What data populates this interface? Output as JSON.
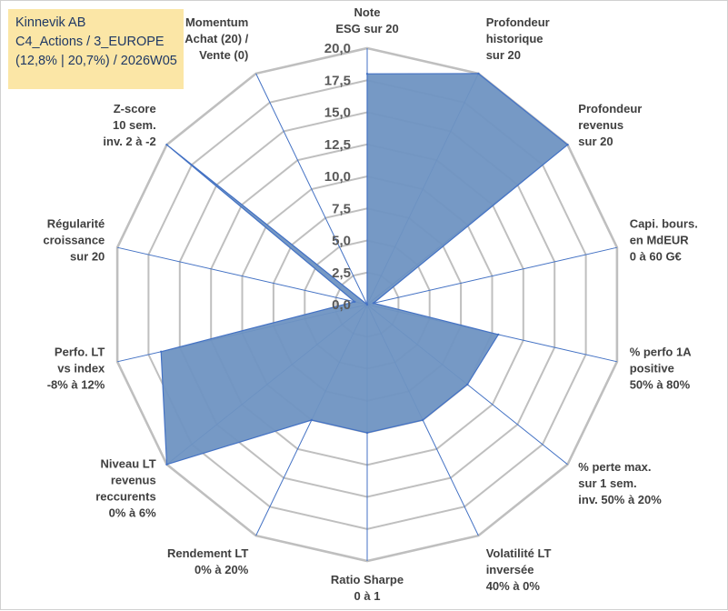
{
  "header": {
    "line1": "Kinnevik AB",
    "line2": "C4_Actions / 3_EUROPE",
    "line3": "(12,8% | 20,7%) / 2026W05"
  },
  "chart_data": {
    "type": "radar",
    "title": "",
    "rlim": [
      0,
      20
    ],
    "ticks": [
      "0,0",
      "2,5",
      "5,0",
      "7,5",
      "10,0",
      "12,5",
      "15,0",
      "17,5",
      "20,0"
    ],
    "grid": true,
    "colors": {
      "fill": "#6f93c2",
      "stroke": "#4472c4",
      "grid": "#bfbfbf",
      "spoke": "#4472c4"
    },
    "categories": [
      [
        "Note",
        "ESG sur 20"
      ],
      [
        "Profondeur",
        "historique",
        "sur 20"
      ],
      [
        "Profondeur",
        "revenus",
        "sur 20"
      ],
      [
        "Capi. bours.",
        "en MdEUR",
        "0 à 60 G€"
      ],
      [
        "% perfo 1A",
        "positive",
        "50% à 80%"
      ],
      [
        "% perte max.",
        "sur 1 sem.",
        "inv. 50% à 20%"
      ],
      [
        "Volatilité LT",
        "inversée",
        "40% à 0%"
      ],
      [
        "Ratio Sharpe",
        "0 à 1"
      ],
      [
        "Rendement LT",
        "0% à 20%"
      ],
      [
        "Niveau LT",
        "revenus",
        "reccurents",
        "0% à 6%"
      ],
      [
        "Perfo. LT",
        "vs index",
        "-8% à 12%"
      ],
      [
        "Régularité",
        "croissance",
        "sur 20"
      ],
      [
        "Z-score",
        "10 sem.",
        "inv. 2 à -2"
      ],
      [
        "Momentum",
        "Achat (20) /",
        "Vente (0)"
      ]
    ],
    "series": [
      {
        "values": [
          18,
          20,
          20,
          0.5,
          10.5,
          10,
          10,
          10,
          10,
          20,
          16.5,
          1,
          20,
          0
        ]
      }
    ]
  }
}
